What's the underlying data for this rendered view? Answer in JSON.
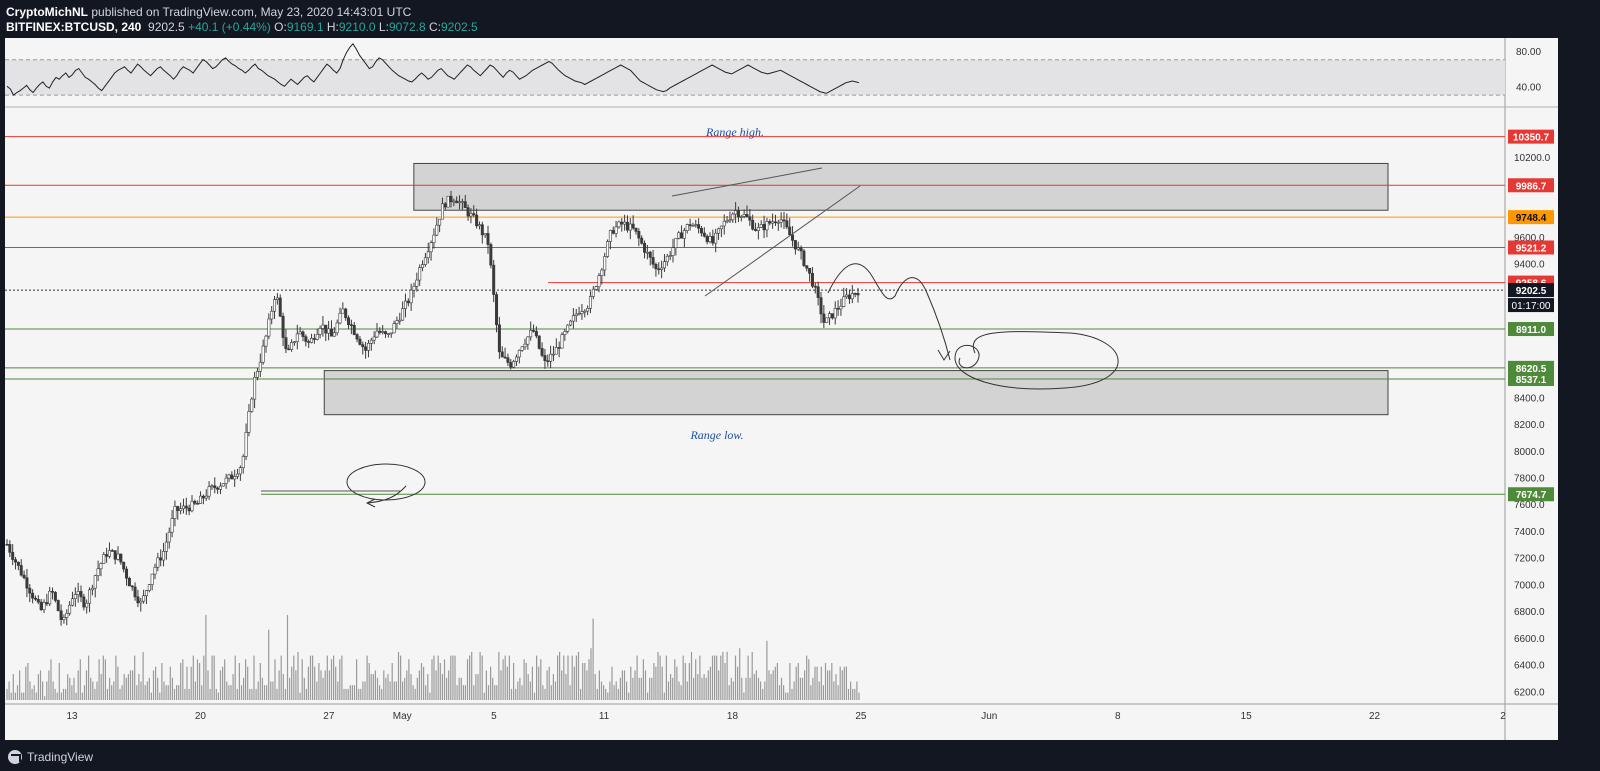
{
  "header": {
    "author": "CryptoMichNL",
    "published": "published on TradingView.com, May 23, 2020 14:43:01 UTC",
    "symbol": "BITFINEX:BTCUSD, 240",
    "last": "9202.5",
    "change": "+40.1 (+0.44%)",
    "o_label": "O:",
    "o": "9169.1",
    "h_label": "H:",
    "h": "9210.0",
    "l_label": "L:",
    "l": "9072.8",
    "c_label": "C:",
    "c": "9202.5"
  },
  "footer": {
    "brand": "TradingView"
  },
  "colors": {
    "bg": "#f5f5f5",
    "frame": "#131722",
    "red": "#e53935",
    "orange": "#ff9800",
    "green": "#4f8a3a",
    "candle": "#3a3a3a",
    "candle_up": "#ffffff",
    "note": "#1a4d9c"
  },
  "chart_data": {
    "type": "candlestick",
    "symbol": "BITFINEX:BTCUSD",
    "timeframe": "240",
    "x_ticks": [
      {
        "label": "13",
        "day": 0
      },
      {
        "label": "20",
        "day": 7
      },
      {
        "label": "27",
        "day": 14
      },
      {
        "label": "May",
        "day": 18
      },
      {
        "label": "5",
        "day": 23
      },
      {
        "label": "11",
        "day": 29
      },
      {
        "label": "18",
        "day": 36
      },
      {
        "label": "25",
        "day": 43
      },
      {
        "label": "Jun",
        "day": 50
      },
      {
        "label": "8",
        "day": 57
      },
      {
        "label": "15",
        "day": 64
      },
      {
        "label": "22",
        "day": 71
      },
      {
        "label": "2",
        "day": 78
      }
    ],
    "y_ticks": [
      "6200.0",
      "6400.0",
      "6600.0",
      "6800.0",
      "7000.0",
      "7200.0",
      "7400.0",
      "7600.0",
      "7800.0",
      "8000.0",
      "8200.0",
      "8400.0",
      "9400.0",
      "9600.0",
      "10200.0"
    ],
    "ylim": [
      6150,
      10550
    ],
    "rsi": {
      "ticks": [
        "80.00",
        "40.00"
      ],
      "band": [
        30,
        70
      ],
      "ylim": [
        20,
        90
      ],
      "values": [
        40,
        37,
        30,
        33,
        35,
        38,
        41,
        36,
        33,
        38,
        42,
        45,
        40,
        38,
        45,
        50,
        48,
        52,
        55,
        50,
        53,
        58,
        60,
        55,
        50,
        48,
        45,
        42,
        38,
        35,
        40,
        45,
        50,
        55,
        58,
        60,
        62,
        58,
        55,
        60,
        65,
        62,
        58,
        55,
        52,
        56,
        60,
        62,
        58,
        55,
        52,
        48,
        52,
        58,
        62,
        60,
        58,
        55,
        60,
        65,
        70,
        68,
        64,
        60,
        62,
        66,
        70,
        72,
        68,
        65,
        63,
        60,
        58,
        55,
        58,
        62,
        65,
        60,
        58,
        55,
        52,
        50,
        48,
        45,
        42,
        40,
        44,
        48,
        45,
        42,
        46,
        50,
        52,
        48,
        45,
        50,
        55,
        60,
        65,
        62,
        58,
        55,
        60,
        70,
        78,
        84,
        88,
        82,
        75,
        70,
        65,
        60,
        62,
        68,
        72,
        70,
        66,
        62,
        58,
        55,
        52,
        50,
        48,
        46,
        45,
        48,
        52,
        55,
        52,
        48,
        50,
        54,
        58,
        60,
        56,
        52,
        50,
        48,
        52,
        56,
        60,
        64,
        62,
        58,
        55,
        52,
        56,
        60,
        64,
        62,
        58,
        54,
        50,
        55,
        58,
        56,
        52,
        48,
        50,
        52,
        55,
        58,
        60,
        62,
        64,
        66,
        68,
        66,
        62,
        58,
        55,
        52,
        50,
        48,
        46,
        45,
        44,
        42,
        44,
        46,
        48,
        50,
        52,
        54,
        56,
        58,
        60,
        62,
        64,
        62,
        60,
        58,
        54,
        50,
        46,
        44,
        42,
        40,
        38,
        36,
        35,
        34,
        35,
        38,
        40,
        42,
        44,
        46,
        48,
        50,
        52,
        54,
        56,
        58,
        60,
        62,
        64,
        62,
        60,
        58,
        56,
        55,
        54,
        56,
        58,
        60,
        62,
        64,
        62,
        60,
        58,
        56,
        55,
        54,
        55,
        56,
        57,
        58,
        56,
        54,
        52,
        50,
        48,
        46,
        44,
        42,
        40,
        38,
        36,
        34,
        33,
        32,
        34,
        36,
        38,
        40,
        42,
        44,
        45,
        46,
        45,
        44
      ]
    },
    "volume": [
      3,
      5,
      2,
      7,
      2,
      4,
      8,
      2,
      2,
      9,
      10,
      5,
      3,
      4,
      2,
      7,
      8,
      5,
      1,
      5,
      8,
      11,
      5,
      3,
      2,
      10,
      2,
      3,
      3,
      7,
      6,
      4,
      6,
      2,
      8,
      11,
      2,
      4,
      8,
      12,
      6,
      5,
      3,
      5,
      11,
      7,
      12,
      11,
      3,
      6,
      4,
      5,
      12,
      9,
      3,
      4,
      7,
      6,
      7,
      8,
      8,
      12,
      4,
      7,
      5,
      13,
      4,
      5,
      6,
      2,
      8,
      9,
      6,
      2,
      10,
      5,
      4,
      4,
      9,
      6,
      3,
      4,
      4,
      10,
      11,
      3,
      9,
      3,
      9,
      12,
      5,
      11,
      10,
      4,
      12,
      23,
      8,
      3,
      12,
      12,
      3,
      2,
      8,
      9,
      11,
      5,
      4,
      4,
      7,
      12,
      3,
      10,
      4,
      6,
      11,
      9,
      3,
      3,
      12,
      3,
      5,
      10,
      6,
      4,
      4,
      19,
      5,
      5,
      11,
      3,
      8,
      12,
      7,
      3,
      23,
      6,
      9,
      12,
      8,
      13,
      2,
      11,
      6,
      3,
      9,
      12,
      12,
      9,
      5,
      10,
      8,
      6,
      8,
      12,
      8,
      11,
      12,
      9,
      5,
      11,
      12,
      3,
      3,
      3,
      4,
      4,
      4,
      11,
      3,
      3,
      5,
      5,
      12,
      10,
      7,
      7,
      8,
      6,
      4,
      3,
      8,
      6,
      7,
      5,
      10,
      5,
      5,
      13,
      12,
      5,
      6,
      8,
      11,
      7,
      4,
      3,
      6,
      8,
      10,
      9,
      4,
      7,
      2,
      11,
      12,
      8,
      12,
      10,
      7,
      11,
      6,
      8,
      12,
      12,
      12,
      4,
      6,
      6,
      4,
      4,
      11,
      12,
      13,
      4,
      7,
      7,
      13,
      12,
      2,
      8,
      4,
      9,
      6,
      4,
      4,
      13,
      8,
      11,
      12,
      9,
      12,
      3,
      10,
      3,
      5,
      6,
      4,
      11,
      10,
      7,
      5,
      9,
      2,
      12,
      9,
      11,
      4,
      3,
      8,
      9,
      4,
      7,
      5,
      12,
      13,
      8,
      12,
      7,
      12,
      4,
      12,
      9,
      12,
      13,
      3,
      10,
      10,
      8,
      11,
      14,
      22,
      7,
      3,
      8,
      5,
      4,
      3,
      2,
      5,
      9,
      4,
      5,
      3,
      6,
      8,
      8,
      5,
      2,
      9,
      6,
      8,
      12,
      6,
      6,
      11,
      8,
      2,
      6,
      6,
      10,
      9,
      13,
      12,
      9,
      2,
      12,
      5,
      7,
      6,
      11,
      9,
      5,
      4,
      12,
      10,
      5,
      10,
      13,
      6,
      11,
      7,
      12,
      6,
      7,
      6,
      8,
      9,
      12,
      12,
      12,
      8,
      12,
      13,
      10,
      13,
      4,
      6,
      5,
      12,
      9,
      14,
      6,
      2,
      6,
      12,
      6,
      13,
      7,
      8,
      6,
      5,
      3,
      5,
      16,
      8,
      7,
      8,
      9,
      10,
      4,
      6,
      4,
      2,
      2,
      10,
      3,
      5,
      9,
      10,
      6,
      6,
      8,
      12,
      11,
      4,
      6,
      9,
      9,
      5,
      9,
      4,
      10,
      8,
      8,
      10,
      5,
      7,
      4,
      9,
      8,
      9,
      9,
      3,
      5,
      3,
      3,
      5,
      2
    ],
    "vol_max": 40,
    "waypoints": [
      [
        0,
        7300
      ],
      [
        1.5,
        7050
      ],
      [
        3,
        6800
      ],
      [
        4,
        6950
      ],
      [
        5,
        6700
      ],
      [
        6,
        6950
      ],
      [
        7,
        6850
      ],
      [
        8,
        7100
      ],
      [
        9,
        7250
      ],
      [
        10,
        7200
      ],
      [
        11,
        7000
      ],
      [
        12,
        6850
      ],
      [
        13,
        7100
      ],
      [
        14,
        7250
      ],
      [
        15,
        7550
      ],
      [
        17,
        7600
      ],
      [
        18,
        7700
      ],
      [
        19,
        7750
      ],
      [
        20,
        7800
      ],
      [
        21,
        7900
      ],
      [
        22,
        8500
      ],
      [
        23,
        8800
      ],
      [
        24,
        9200
      ],
      [
        25,
        8700
      ],
      [
        26,
        8900
      ],
      [
        27,
        8800
      ],
      [
        28,
        8950
      ],
      [
        29,
        8850
      ],
      [
        30,
        9050
      ],
      [
        31,
        8900
      ],
      [
        32,
        8750
      ],
      [
        33,
        8900
      ],
      [
        34,
        8850
      ],
      [
        35,
        9000
      ],
      [
        36,
        9150
      ],
      [
        37,
        9400
      ],
      [
        38,
        9600
      ],
      [
        39,
        9850
      ],
      [
        40,
        9900
      ],
      [
        41,
        9800
      ],
      [
        42,
        9700
      ],
      [
        43,
        9550
      ],
      [
        44,
        8700
      ],
      [
        45,
        8650
      ],
      [
        46,
        8800
      ],
      [
        47,
        8900
      ],
      [
        48,
        8650
      ],
      [
        49,
        8750
      ],
      [
        50,
        8900
      ],
      [
        51,
        9050
      ],
      [
        52,
        9100
      ],
      [
        53,
        9350
      ],
      [
        54,
        9650
      ],
      [
        55,
        9700
      ],
      [
        56,
        9650
      ],
      [
        57,
        9500
      ],
      [
        58,
        9350
      ],
      [
        59,
        9450
      ],
      [
        60,
        9600
      ],
      [
        61,
        9700
      ],
      [
        62,
        9650
      ],
      [
        63,
        9550
      ],
      [
        64,
        9700
      ],
      [
        65,
        9800
      ],
      [
        66,
        9750
      ],
      [
        67,
        9650
      ],
      [
        68,
        9700
      ],
      [
        69,
        9750
      ],
      [
        70,
        9600
      ],
      [
        71,
        9450
      ],
      [
        72,
        9250
      ],
      [
        73,
        8950
      ],
      [
        74,
        9050
      ],
      [
        75,
        9150
      ],
      [
        76,
        9200
      ]
    ],
    "levels": [
      {
        "price": 10350.7,
        "label": "10350.7",
        "color": "#e53935"
      },
      {
        "price": 9986.7,
        "label": "9986.7",
        "color": "#e53935"
      },
      {
        "price": 9748.4,
        "label": "9748.4",
        "color": "#ff9800"
      },
      {
        "price": 9521.2,
        "label": "9521.2",
        "color": "#e53935"
      },
      {
        "price": 9258.6,
        "label": "9258.6",
        "color": "#e53935"
      },
      {
        "price": 9202.5,
        "label": "9202.5",
        "color": "#131722"
      },
      {
        "price": 8911.0,
        "label": "8911.0",
        "color": "#4f8a3a"
      },
      {
        "price": 8620.5,
        "label": "8620.5",
        "color": "#4f8a3a"
      },
      {
        "price": 8537.1,
        "label": "8537.1",
        "color": "#4f8a3a"
      },
      {
        "price": 7674.7,
        "label": "7674.7",
        "color": "#4f8a3a"
      }
    ],
    "countdown": "01:17:00",
    "zones": [
      {
        "name": "range-high",
        "price_top": 10150,
        "price_bottom": 9800,
        "day_from": 21.8,
        "day_to": 78.5
      },
      {
        "name": "range-low",
        "price_top": 8600,
        "price_bottom": 8270,
        "day_from": 17,
        "day_to": 100
      }
    ],
    "annotations": [
      {
        "name": "range-high-label",
        "text": "Range high."
      },
      {
        "name": "range-low-label",
        "text": "Range low."
      }
    ]
  }
}
